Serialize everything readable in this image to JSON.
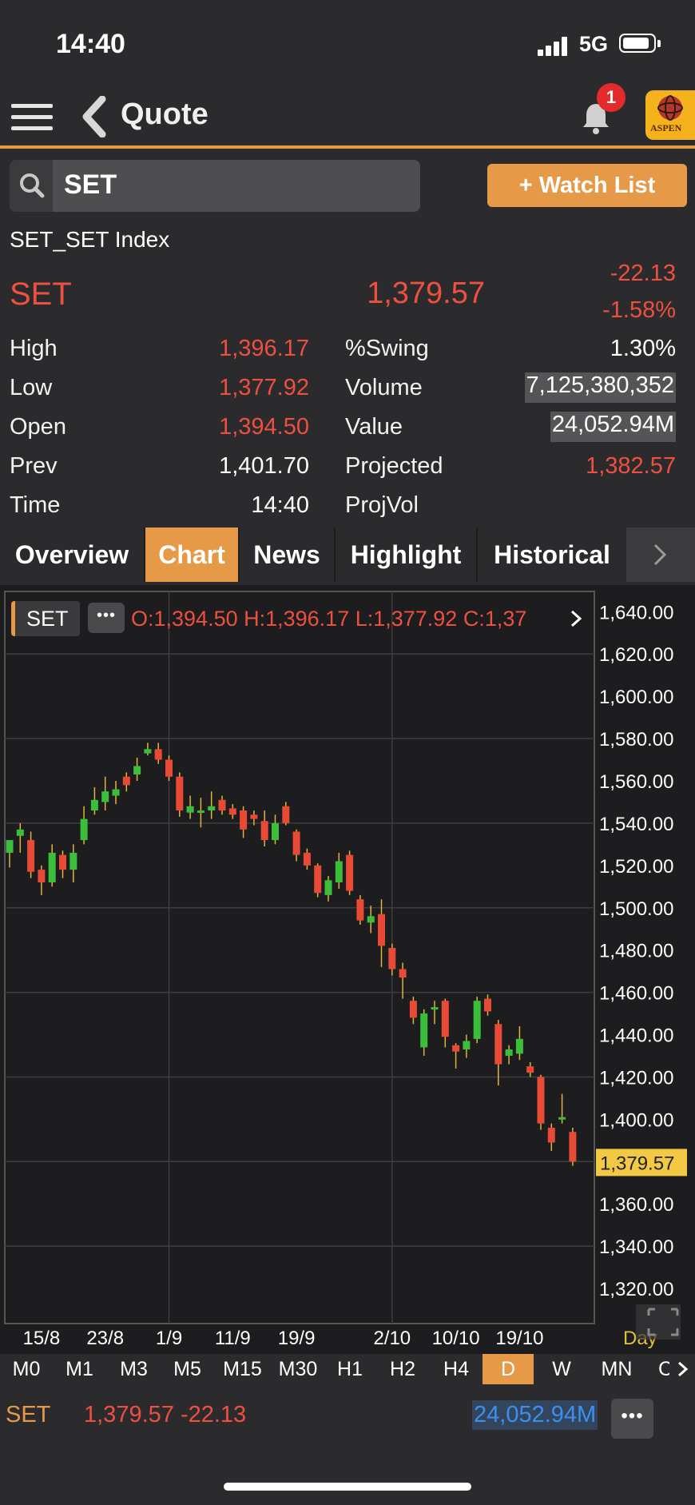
{
  "status_bar": {
    "time": "14:40",
    "network": "5G"
  },
  "nav": {
    "title": "Quote",
    "notification_count": "1",
    "logo_text": "ASPEN"
  },
  "search": {
    "value": "SET",
    "watchlist_label": "+ Watch List"
  },
  "quote": {
    "full_name": "SET_SET Index",
    "symbol": "SET",
    "last": "1,379.57",
    "change": "-22.13",
    "percent_change": "-1.58%",
    "left_stats": [
      {
        "label": "High",
        "value": "1,396.17"
      },
      {
        "label": "Low",
        "value": "1,377.92"
      },
      {
        "label": "Open",
        "value": "1,394.50"
      },
      {
        "label": "Prev",
        "value": "1,401.70"
      },
      {
        "label": "Time",
        "value": "14:40"
      }
    ],
    "right_stats": [
      {
        "label": "%Swing",
        "value": "1.30%"
      },
      {
        "label": "Volume",
        "value": "7,125,380,352"
      },
      {
        "label": "Value",
        "value": "24,052.94M"
      },
      {
        "label": "Projected",
        "value": "1,382.57"
      },
      {
        "label": "ProjVol",
        "value": ""
      }
    ]
  },
  "tabs": [
    "Overview",
    "Chart",
    "News",
    "Highlight",
    "Historical"
  ],
  "active_tab": "Chart",
  "chart_legend": {
    "symbol": "SET",
    "dots": "•••",
    "ohlc": "O:1,394.50  H:1,396.17  L:1,377.92  C:1,37"
  },
  "chart_data": {
    "type": "candlestick",
    "period": "Day",
    "y_ticks": [
      "1,640.00",
      "1,620.00",
      "1,600.00",
      "1,580.00",
      "1,560.00",
      "1,540.00",
      "1,520.00",
      "1,500.00",
      "1,480.00",
      "1,460.00",
      "1,440.00",
      "1,420.00",
      "1,400.00",
      "1,380.00",
      "1,360.00",
      "1,340.00",
      "1,320.00"
    ],
    "ylim": [
      1317,
      1642
    ],
    "last_price_label": "1,379.57",
    "last_price": 1379.57,
    "x_ticks": [
      {
        "label": "15/8",
        "index": 3
      },
      {
        "label": "23/8",
        "index": 9
      },
      {
        "label": "1/9",
        "index": 15
      },
      {
        "label": "11/9",
        "index": 21
      },
      {
        "label": "19/9",
        "index": 27
      },
      {
        "label": "2/10",
        "index": 36
      },
      {
        "label": "10/10",
        "index": 42
      },
      {
        "label": "19/10",
        "index": 48
      }
    ],
    "grid_rows": [
      1620,
      1580,
      1540,
      1500,
      1460,
      1420,
      1380,
      1340
    ],
    "grid_cols": [
      15,
      36
    ],
    "colors": {
      "up": "#3bbf3b",
      "down": "#e84a36",
      "price_tag": "#f3c842"
    },
    "candles": [
      {
        "o": 1526,
        "h": 1532,
        "l": 1519,
        "c": 1532
      },
      {
        "o": 1534,
        "h": 1540,
        "l": 1526,
        "c": 1537
      },
      {
        "o": 1532,
        "h": 1536,
        "l": 1514,
        "c": 1517
      },
      {
        "o": 1518,
        "h": 1520,
        "l": 1506,
        "c": 1512
      },
      {
        "o": 1512,
        "h": 1530,
        "l": 1510,
        "c": 1526
      },
      {
        "o": 1525,
        "h": 1527,
        "l": 1514,
        "c": 1518
      },
      {
        "o": 1518,
        "h": 1530,
        "l": 1512,
        "c": 1526
      },
      {
        "o": 1532,
        "h": 1548,
        "l": 1530,
        "c": 1542
      },
      {
        "o": 1546,
        "h": 1557,
        "l": 1544,
        "c": 1551
      },
      {
        "o": 1550,
        "h": 1562,
        "l": 1546,
        "c": 1555
      },
      {
        "o": 1553,
        "h": 1560,
        "l": 1549,
        "c": 1556
      },
      {
        "o": 1562,
        "h": 1564,
        "l": 1555,
        "c": 1558
      },
      {
        "o": 1563,
        "h": 1571,
        "l": 1560,
        "c": 1567
      },
      {
        "o": 1573,
        "h": 1578,
        "l": 1572,
        "c": 1575
      },
      {
        "o": 1575,
        "h": 1578,
        "l": 1568,
        "c": 1570
      },
      {
        "o": 1570,
        "h": 1572,
        "l": 1560,
        "c": 1562
      },
      {
        "o": 1562,
        "h": 1564,
        "l": 1543,
        "c": 1546
      },
      {
        "o": 1545,
        "h": 1553,
        "l": 1542,
        "c": 1548
      },
      {
        "o": 1546,
        "h": 1552,
        "l": 1538,
        "c": 1546
      },
      {
        "o": 1546,
        "h": 1555,
        "l": 1542,
        "c": 1548
      },
      {
        "o": 1551,
        "h": 1553,
        "l": 1544,
        "c": 1546
      },
      {
        "o": 1547,
        "h": 1549,
        "l": 1542,
        "c": 1544
      },
      {
        "o": 1546,
        "h": 1548,
        "l": 1533,
        "c": 1537
      },
      {
        "o": 1544,
        "h": 1546,
        "l": 1539,
        "c": 1542
      },
      {
        "o": 1541,
        "h": 1546,
        "l": 1529,
        "c": 1532
      },
      {
        "o": 1532,
        "h": 1544,
        "l": 1530,
        "c": 1540
      },
      {
        "o": 1548,
        "h": 1550,
        "l": 1539,
        "c": 1540
      },
      {
        "o": 1536,
        "h": 1537,
        "l": 1522,
        "c": 1525
      },
      {
        "o": 1526,
        "h": 1528,
        "l": 1518,
        "c": 1520
      },
      {
        "o": 1520,
        "h": 1521,
        "l": 1505,
        "c": 1507
      },
      {
        "o": 1506,
        "h": 1515,
        "l": 1503,
        "c": 1513
      },
      {
        "o": 1512,
        "h": 1526,
        "l": 1509,
        "c": 1522
      },
      {
        "o": 1525,
        "h": 1527,
        "l": 1506,
        "c": 1508
      },
      {
        "o": 1504,
        "h": 1506,
        "l": 1492,
        "c": 1494
      },
      {
        "o": 1493,
        "h": 1501,
        "l": 1488,
        "c": 1496
      },
      {
        "o": 1497,
        "h": 1504,
        "l": 1472,
        "c": 1482
      },
      {
        "o": 1481,
        "h": 1483,
        "l": 1468,
        "c": 1471
      },
      {
        "o": 1471,
        "h": 1474,
        "l": 1457,
        "c": 1467
      },
      {
        "o": 1456,
        "h": 1458,
        "l": 1445,
        "c": 1448
      },
      {
        "o": 1434,
        "h": 1452,
        "l": 1430,
        "c": 1450
      },
      {
        "o": 1452,
        "h": 1456,
        "l": 1445,
        "c": 1453
      },
      {
        "o": 1456,
        "h": 1457,
        "l": 1434,
        "c": 1439
      },
      {
        "o": 1435,
        "h": 1436,
        "l": 1424,
        "c": 1432
      },
      {
        "o": 1433,
        "h": 1440,
        "l": 1429,
        "c": 1437
      },
      {
        "o": 1438,
        "h": 1458,
        "l": 1436,
        "c": 1456
      },
      {
        "o": 1457,
        "h": 1459,
        "l": 1449,
        "c": 1451
      },
      {
        "o": 1445,
        "h": 1447,
        "l": 1416,
        "c": 1426
      },
      {
        "o": 1430,
        "h": 1435,
        "l": 1426,
        "c": 1433
      },
      {
        "o": 1431,
        "h": 1444,
        "l": 1428,
        "c": 1438
      },
      {
        "o": 1425,
        "h": 1427,
        "l": 1420,
        "c": 1422
      },
      {
        "o": 1420,
        "h": 1421,
        "l": 1395,
        "c": 1398
      },
      {
        "o": 1396,
        "h": 1398,
        "l": 1385,
        "c": 1389
      },
      {
        "o": 1400,
        "h": 1412,
        "l": 1398,
        "c": 1401
      },
      {
        "o": 1394,
        "h": 1396,
        "l": 1378,
        "c": 1380
      }
    ]
  },
  "periods": [
    "M0",
    "M1",
    "M3",
    "M5",
    "M15",
    "M30",
    "H1",
    "H2",
    "H4",
    "D",
    "W",
    "MN",
    "C"
  ],
  "active_period": "D",
  "footer": {
    "symbol": "SET",
    "price_change": "1,379.57 -22.13",
    "value": "24,052.94M",
    "more": "•••"
  }
}
